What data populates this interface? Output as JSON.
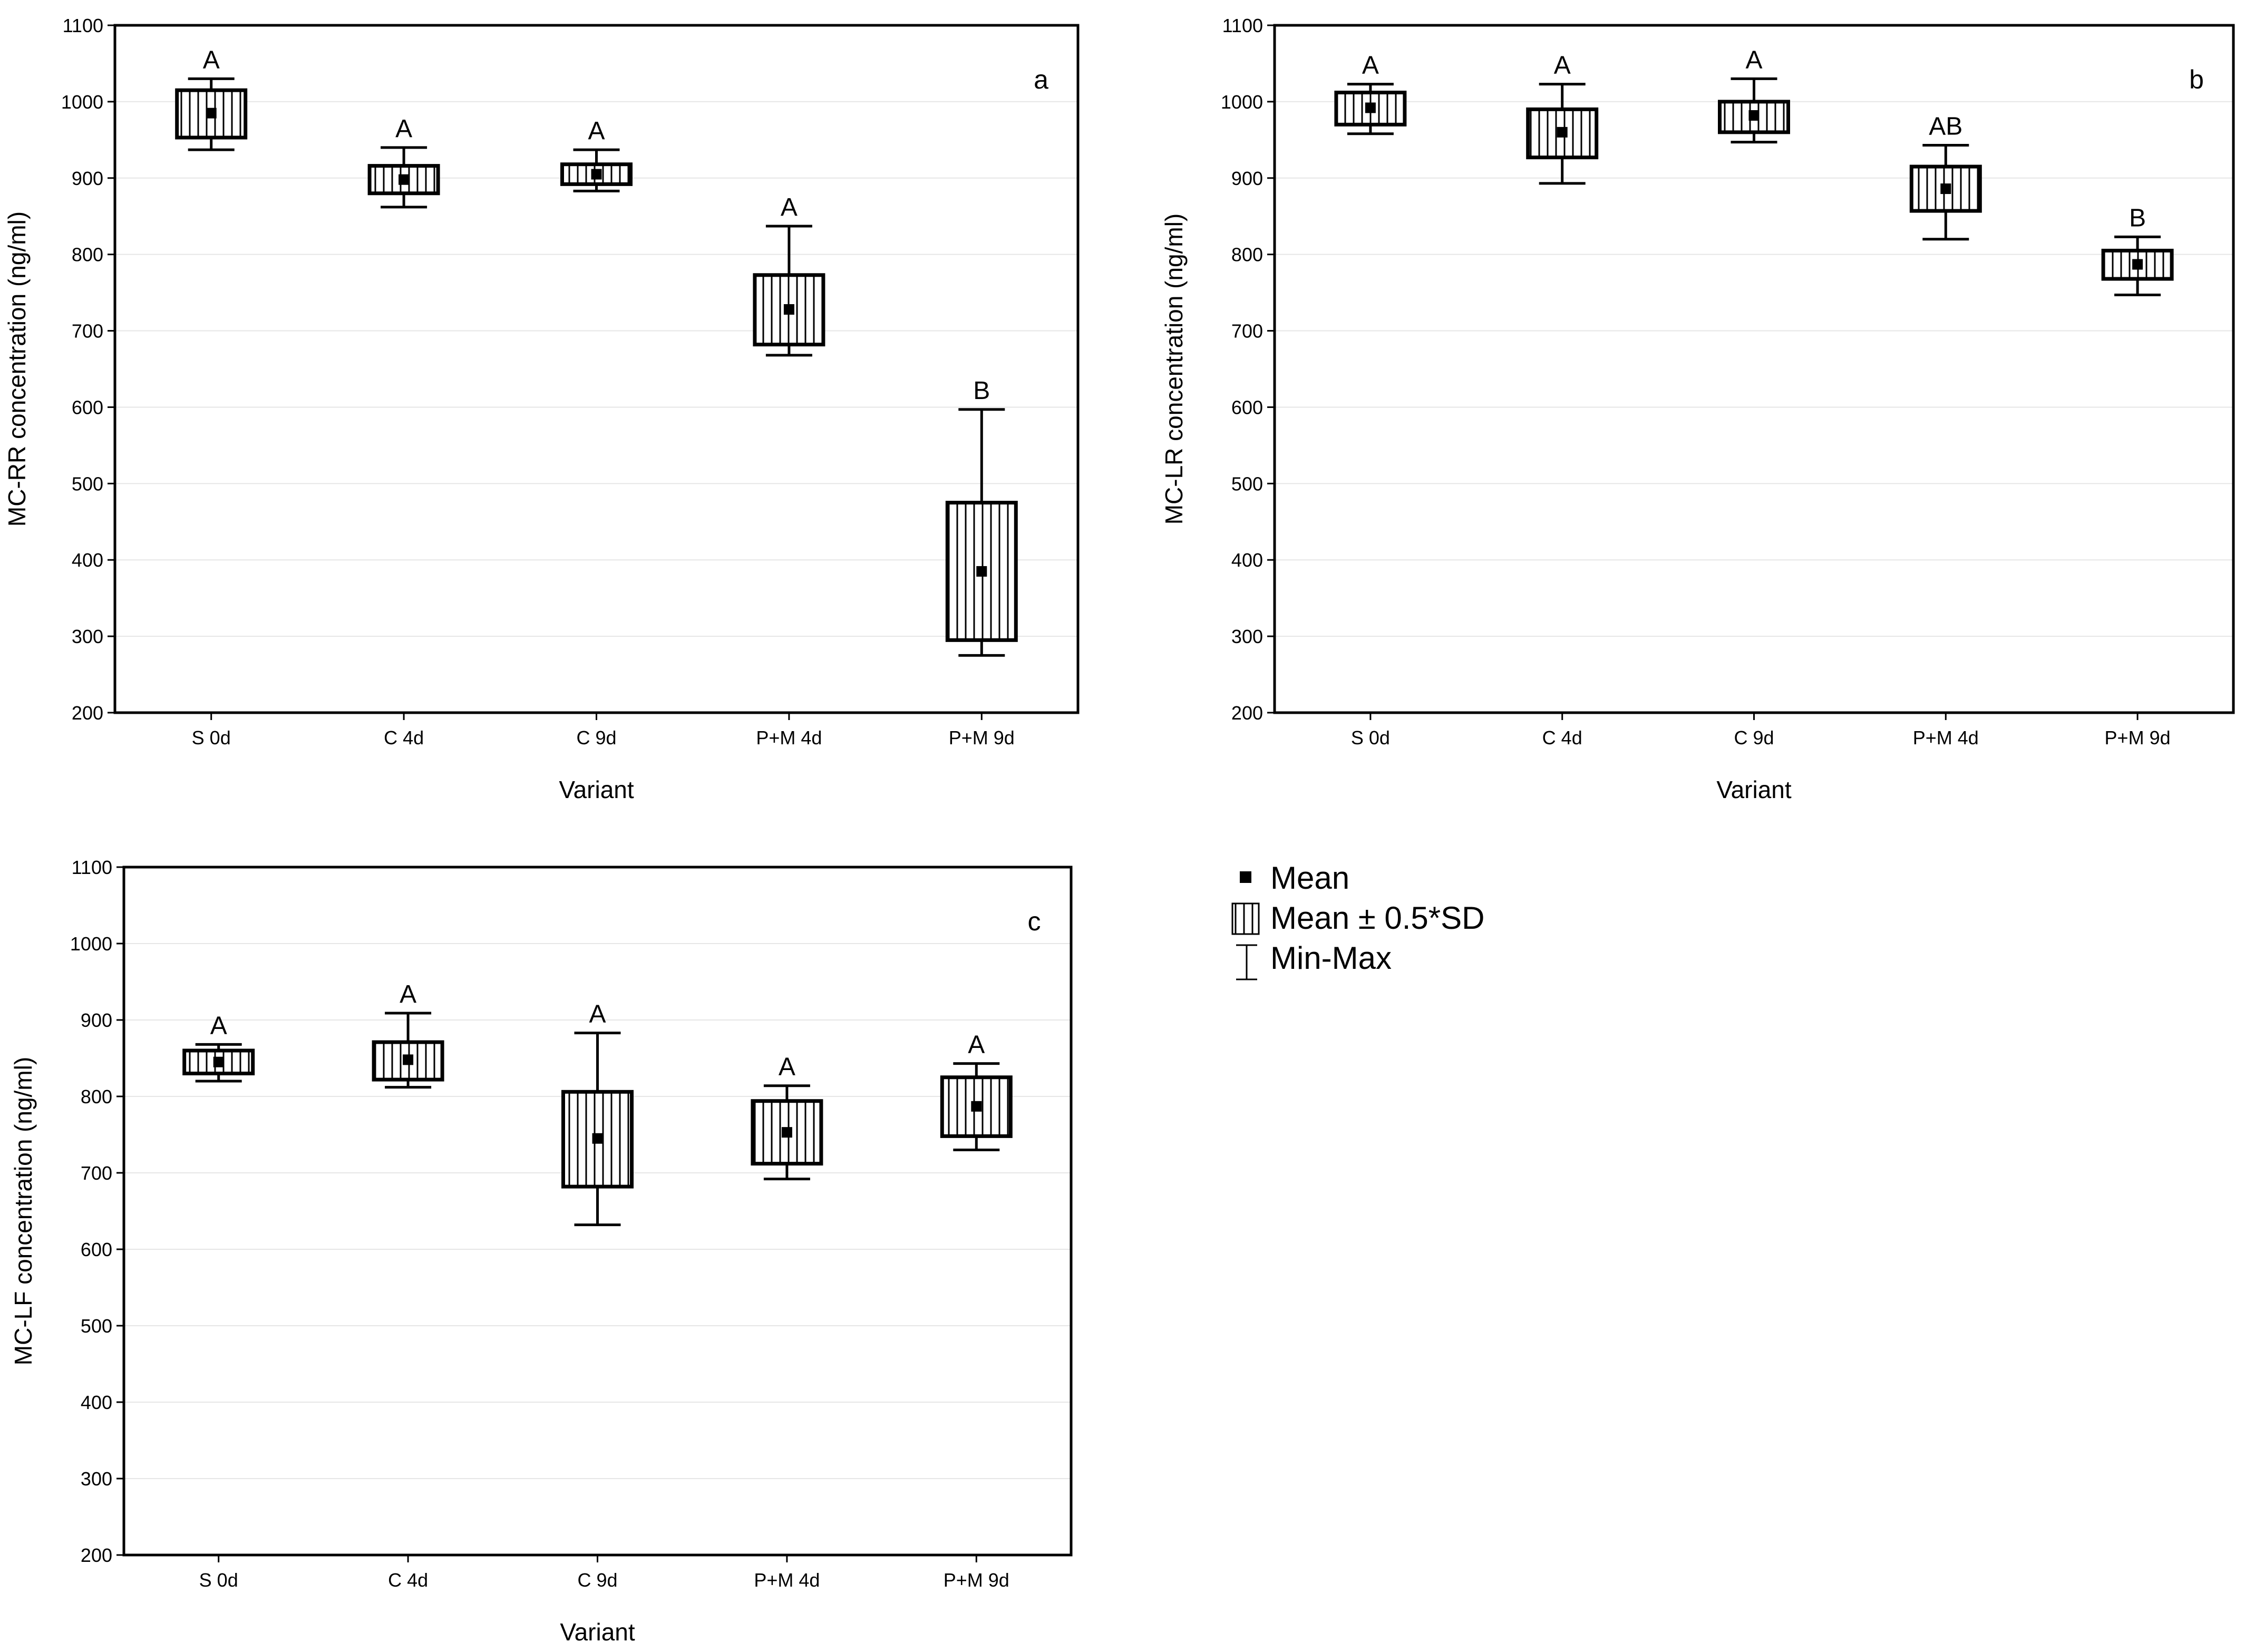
{
  "chart_data": [
    {
      "type": "box",
      "panel_label": "a",
      "xlabel": "Variant",
      "ylabel": "MC-RR concentration (ng/ml)",
      "ylim": [
        200,
        1100
      ],
      "yticks": [
        "200",
        "300",
        "400",
        "500",
        "600",
        "700",
        "800",
        "900",
        "1000",
        "1100"
      ],
      "categories": [
        "S 0d",
        "C 4d",
        "C 9d",
        "P+M 4d",
        "P+M 9d"
      ],
      "series": [
        {
          "category": "S 0d",
          "mean": 985,
          "box_low": 953,
          "box_high": 1015,
          "min": 937,
          "max": 1030,
          "group": "A"
        },
        {
          "category": "C 4d",
          "mean": 898,
          "box_low": 880,
          "box_high": 916,
          "min": 862,
          "max": 940,
          "group": "A"
        },
        {
          "category": "C 9d",
          "mean": 905,
          "box_low": 892,
          "box_high": 918,
          "min": 883,
          "max": 937,
          "group": "A"
        },
        {
          "category": "P+M 4d",
          "mean": 728,
          "box_low": 682,
          "box_high": 773,
          "min": 668,
          "max": 837,
          "group": "A"
        },
        {
          "category": "P+M 9d",
          "mean": 385,
          "box_low": 295,
          "box_high": 475,
          "min": 275,
          "max": 597,
          "group": "B"
        }
      ]
    },
    {
      "type": "box",
      "panel_label": "b",
      "xlabel": "Variant",
      "ylabel": "MC-LR concentration (ng/ml)",
      "ylim": [
        200,
        1100
      ],
      "yticks": [
        "200",
        "300",
        "400",
        "500",
        "600",
        "700",
        "800",
        "900",
        "1000",
        "1100"
      ],
      "categories": [
        "S 0d",
        "C 4d",
        "C 9d",
        "P+M 4d",
        "P+M 9d"
      ],
      "series": [
        {
          "category": "S 0d",
          "mean": 992,
          "box_low": 970,
          "box_high": 1012,
          "min": 958,
          "max": 1023,
          "group": "A"
        },
        {
          "category": "C 4d",
          "mean": 960,
          "box_low": 927,
          "box_high": 990,
          "min": 893,
          "max": 1023,
          "group": "A"
        },
        {
          "category": "C 9d",
          "mean": 982,
          "box_low": 960,
          "box_high": 1000,
          "min": 947,
          "max": 1030,
          "group": "A"
        },
        {
          "category": "P+M 4d",
          "mean": 886,
          "box_low": 857,
          "box_high": 915,
          "min": 820,
          "max": 943,
          "group": "AB"
        },
        {
          "category": "P+M 9d",
          "mean": 787,
          "box_low": 768,
          "box_high": 805,
          "min": 747,
          "max": 823,
          "group": "B"
        }
      ]
    },
    {
      "type": "box",
      "panel_label": "c",
      "xlabel": "Variant",
      "ylabel": "MC-LF concentration (ng/ml)",
      "ylim": [
        200,
        1100
      ],
      "yticks": [
        "200",
        "300",
        "400",
        "500",
        "600",
        "700",
        "800",
        "900",
        "1000",
        "1100"
      ],
      "categories": [
        "S 0d",
        "C 4d",
        "C 9d",
        "P+M 4d",
        "P+M 9d"
      ],
      "series": [
        {
          "category": "S 0d",
          "mean": 845,
          "box_low": 830,
          "box_high": 860,
          "min": 820,
          "max": 868,
          "group": "A"
        },
        {
          "category": "C 4d",
          "mean": 848,
          "box_low": 822,
          "box_high": 871,
          "min": 812,
          "max": 909,
          "group": "A"
        },
        {
          "category": "C 9d",
          "mean": 745,
          "box_low": 682,
          "box_high": 806,
          "min": 632,
          "max": 883,
          "group": "A"
        },
        {
          "category": "P+M 4d",
          "mean": 753,
          "box_low": 712,
          "box_high": 794,
          "min": 692,
          "max": 814,
          "group": "A"
        },
        {
          "category": "P+M 9d",
          "mean": 787,
          "box_low": 748,
          "box_high": 825,
          "min": 730,
          "max": 843,
          "group": "A"
        }
      ]
    }
  ],
  "legend": {
    "mean_label": "Mean",
    "box_label": "Mean ± 0.5*SD",
    "whisker_label": "Min-Max"
  }
}
